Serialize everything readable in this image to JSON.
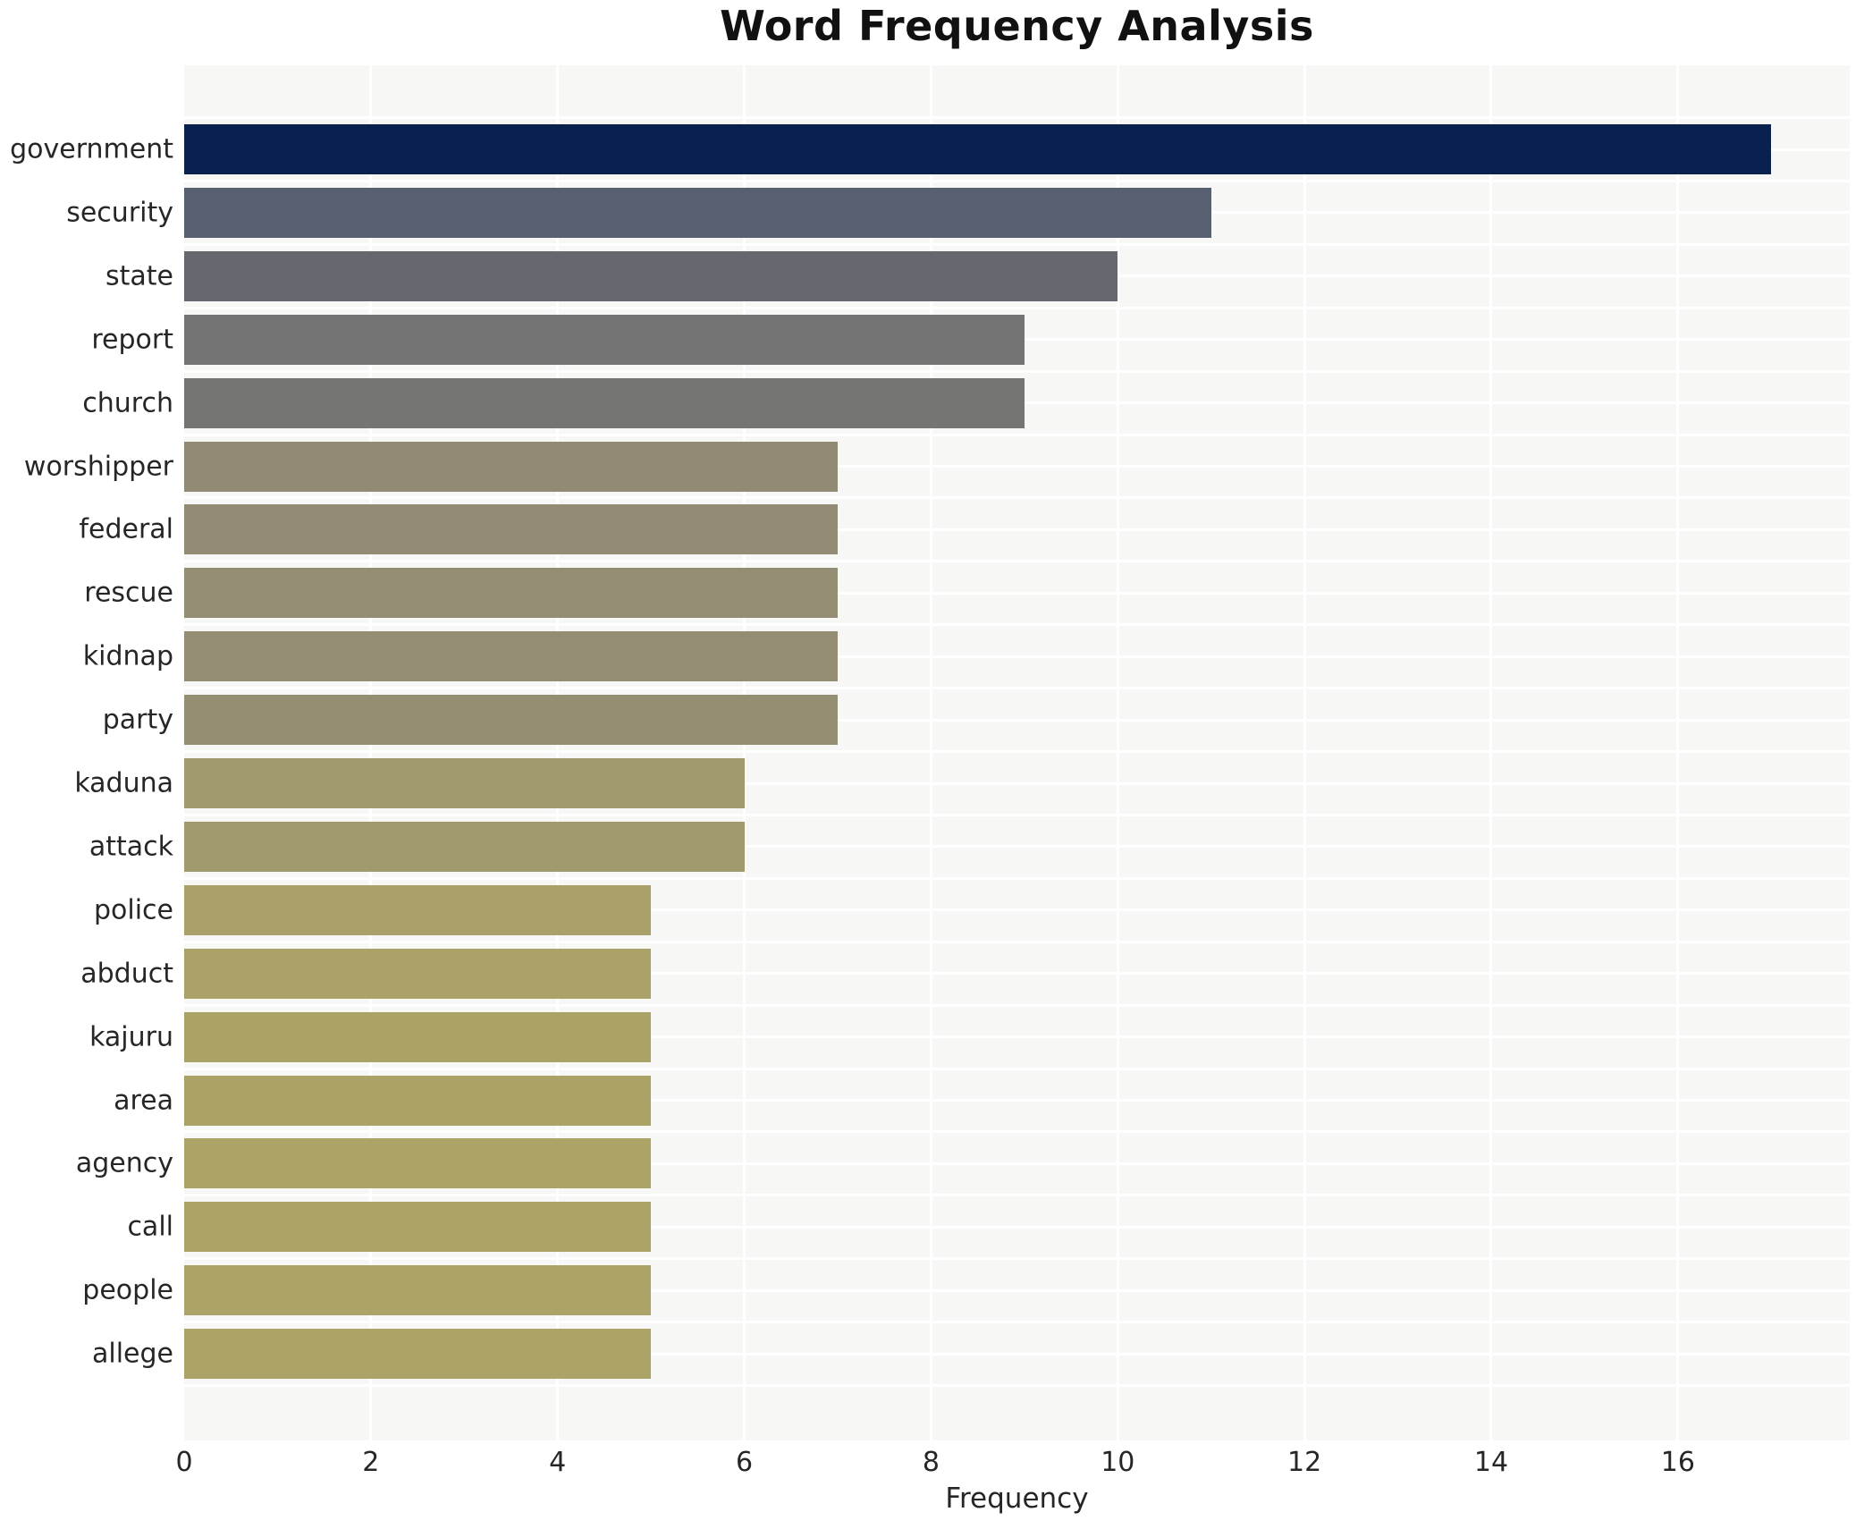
{
  "title": "Word Frequency Analysis",
  "x_axis_label": "Frequency",
  "colors": {
    "figure_bg": "#ffffff",
    "plot_bg": "#f7f7f6",
    "grid": "#ffffff",
    "text": "#262626",
    "title_text": "#111111"
  },
  "chart_data": {
    "type": "bar",
    "orientation": "horizontal",
    "title": "Word Frequency Analysis",
    "xlabel": "Frequency",
    "ylabel": "",
    "xlim": [
      0,
      17.84
    ],
    "x_ticks": [
      0,
      2,
      4,
      6,
      8,
      10,
      12,
      14,
      16
    ],
    "grid": true,
    "legend": false,
    "categories": [
      "government",
      "security",
      "state",
      "report",
      "church",
      "worshipper",
      "federal",
      "rescue",
      "kidnap",
      "party",
      "kaduna",
      "attack",
      "police",
      "abduct",
      "kajuru",
      "area",
      "agency",
      "call",
      "people",
      "allege"
    ],
    "values": [
      17,
      11,
      10,
      9,
      9,
      7,
      7,
      7,
      7,
      7,
      6,
      6,
      5,
      5,
      5,
      5,
      5,
      5,
      5,
      5
    ],
    "bar_colors": [
      "#0a2150",
      "#566070",
      "#67686f",
      "#737473",
      "#757672",
      "#918b75",
      "#938c75",
      "#938d74",
      "#948d73",
      "#948e72",
      "#a0996d",
      "#a19a6c",
      "#a9a169",
      "#aaa268",
      "#aba268",
      "#aba267",
      "#aca367",
      "#aca368",
      "#aca368",
      "#aca368"
    ]
  }
}
